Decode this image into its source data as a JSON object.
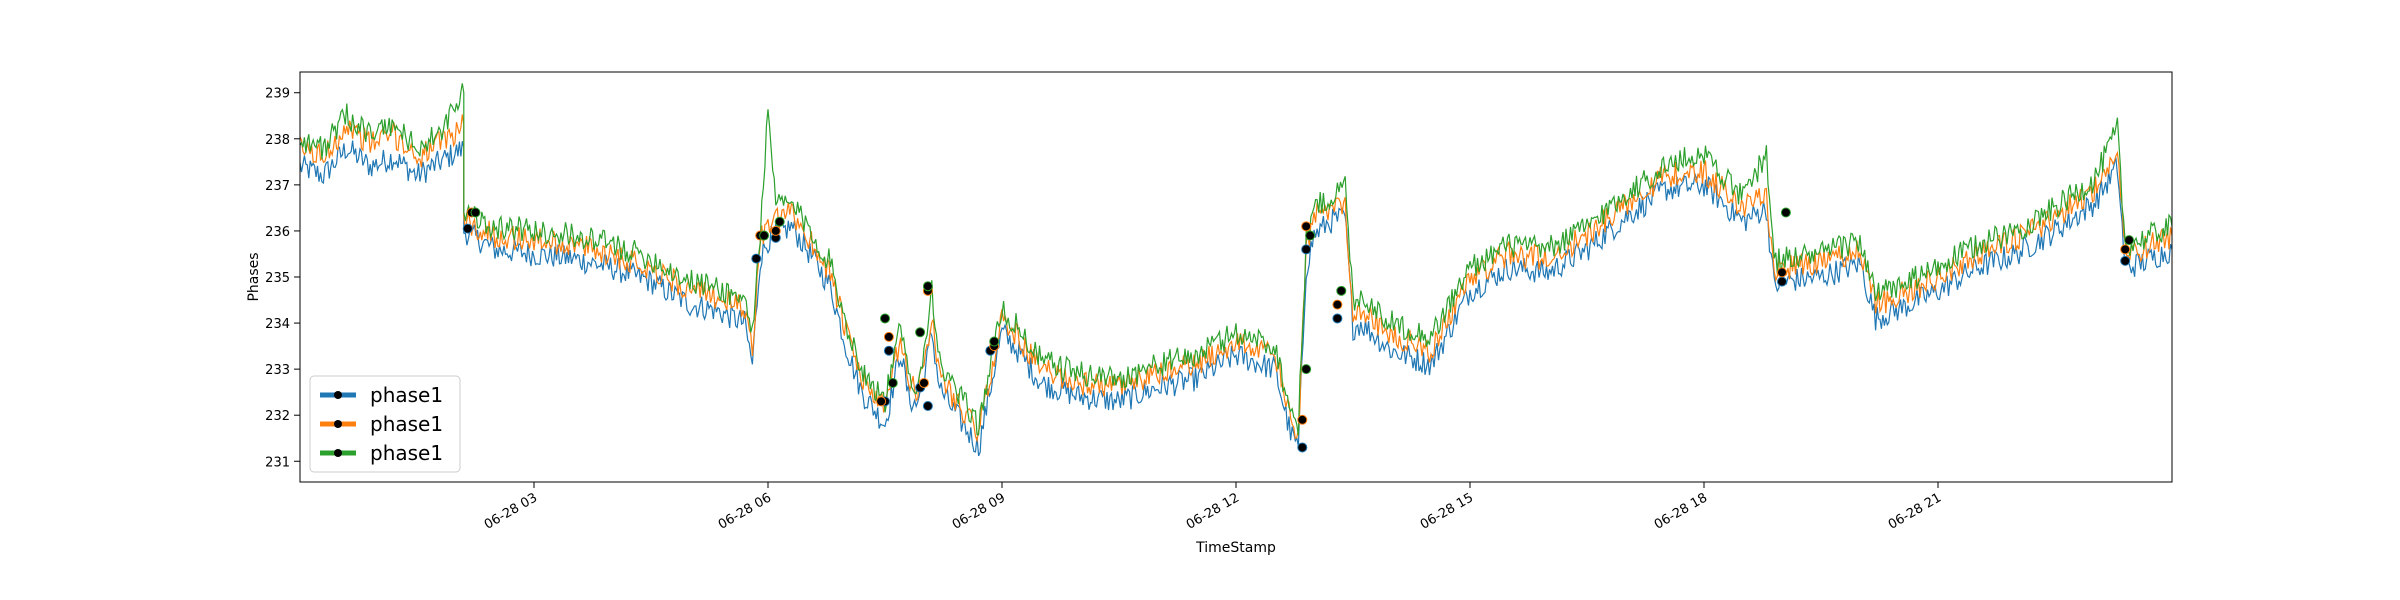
{
  "chart_data": {
    "type": "line",
    "title": "",
    "xlabel": "TimeStamp",
    "ylabel": "Phases",
    "ylim": [
      230.55,
      239.45
    ],
    "xlim": [
      0.0,
      24.0
    ],
    "x_unit": "hours since 06-28 00:00",
    "grid": false,
    "legend_position": "lower-left",
    "x_ticks": [
      {
        "value": 3,
        "label": "06-28 03"
      },
      {
        "value": 6,
        "label": "06-28 06"
      },
      {
        "value": 9,
        "label": "06-28 09"
      },
      {
        "value": 12,
        "label": "06-28 12"
      },
      {
        "value": 15,
        "label": "06-28 15"
      },
      {
        "value": 18,
        "label": "06-28 18"
      },
      {
        "value": 21,
        "label": "06-28 21"
      }
    ],
    "y_ticks": [
      231,
      232,
      233,
      234,
      235,
      236,
      237,
      238,
      239
    ],
    "series": [
      {
        "name": "phase1",
        "color": "#1f77b4",
        "x": [
          0,
          0.3,
          0.6,
          0.9,
          1.2,
          1.5,
          1.8,
          2.1,
          2.1,
          2.2,
          2.5,
          3,
          3.5,
          4,
          4.5,
          5,
          5.3,
          5.7,
          5.8,
          5.9,
          6,
          6.1,
          6.3,
          6.5,
          6.8,
          7,
          7.2,
          7.5,
          7.6,
          7.7,
          7.8,
          7.9,
          8.0,
          8.1,
          8.2,
          8.3,
          8.5,
          8.7,
          8.9,
          9.0,
          9.2,
          9.5,
          10,
          10.5,
          11,
          11.5,
          12,
          12.5,
          12.7,
          12.8,
          12.9,
          13,
          13.2,
          13.4,
          13.5,
          13.6,
          13.8,
          14,
          14.5,
          15,
          15.5,
          16,
          16.5,
          17,
          17.5,
          18,
          18.5,
          18.8,
          18.9,
          19,
          19.5,
          20,
          20.2,
          20.5,
          21,
          21.5,
          22,
          22.5,
          23,
          23.3,
          23.4,
          23.6,
          24
        ],
        "y": [
          237.4,
          237.2,
          237.8,
          237.4,
          237.6,
          237.2,
          237.5,
          237.8,
          236.0,
          235.9,
          235.6,
          235.5,
          235.4,
          235.2,
          234.9,
          234.4,
          234.3,
          234.0,
          233.1,
          235.4,
          235.8,
          235.9,
          236.1,
          235.6,
          234.8,
          233.5,
          232.5,
          231.8,
          232.6,
          233.4,
          232.4,
          232.2,
          232.8,
          233.8,
          232.6,
          232.3,
          231.8,
          231.3,
          233.0,
          233.8,
          233.4,
          232.7,
          232.4,
          232.3,
          232.6,
          232.8,
          233.3,
          233.0,
          231.6,
          231.3,
          235.2,
          235.9,
          236.2,
          236.3,
          233.9,
          234.0,
          233.7,
          233.4,
          233.1,
          234.7,
          235.2,
          235.1,
          235.6,
          236.3,
          236.9,
          237.0,
          236.2,
          236.5,
          234.8,
          234.9,
          235.0,
          235.3,
          234.1,
          234.3,
          234.7,
          235.2,
          235.5,
          236.0,
          236.6,
          237.4,
          235.2,
          235.3,
          235.6
        ],
        "markers": [
          [
            2.15,
            236.05
          ],
          [
            5.85,
            235.4
          ],
          [
            6.1,
            235.85
          ],
          [
            7.5,
            232.3
          ],
          [
            7.55,
            233.4
          ],
          [
            7.95,
            232.6
          ],
          [
            8.05,
            232.2
          ],
          [
            8.85,
            233.4
          ],
          [
            12.85,
            231.3
          ],
          [
            12.9,
            235.6
          ],
          [
            13.3,
            234.1
          ],
          [
            19.0,
            234.9
          ],
          [
            23.4,
            235.35
          ]
        ]
      },
      {
        "name": "phase1",
        "color": "#ff7f0e",
        "x": [
          0,
          0.3,
          0.6,
          0.9,
          1.2,
          1.5,
          1.8,
          2.1,
          2.1,
          2.2,
          2.5,
          3,
          3.5,
          4,
          4.5,
          5,
          5.3,
          5.7,
          5.8,
          5.9,
          6,
          6.1,
          6.3,
          6.5,
          6.8,
          7,
          7.2,
          7.5,
          7.6,
          7.7,
          7.8,
          7.9,
          8.0,
          8.1,
          8.2,
          8.3,
          8.5,
          8.7,
          8.9,
          9.0,
          9.2,
          9.5,
          10,
          10.5,
          11,
          11.5,
          12,
          12.5,
          12.7,
          12.8,
          12.9,
          13,
          13.2,
          13.4,
          13.5,
          13.6,
          13.8,
          14,
          14.5,
          15,
          15.5,
          16,
          16.5,
          17,
          17.5,
          18,
          18.5,
          18.8,
          18.9,
          19,
          19.5,
          20,
          20.2,
          20.5,
          21,
          21.5,
          22,
          22.5,
          23,
          23.3,
          23.4,
          23.6,
          24
        ],
        "y": [
          237.8,
          237.6,
          238.3,
          237.9,
          238.1,
          237.6,
          237.9,
          238.3,
          236.3,
          236.1,
          235.9,
          235.8,
          235.7,
          235.5,
          235.2,
          234.7,
          234.6,
          234.3,
          233.5,
          235.8,
          236.1,
          236.2,
          236.4,
          235.9,
          235.1,
          233.8,
          232.8,
          232.1,
          232.9,
          233.7,
          232.7,
          232.5,
          233.1,
          234.1,
          232.9,
          232.6,
          232.1,
          231.6,
          233.3,
          234.1,
          233.7,
          233.0,
          232.7,
          232.6,
          232.9,
          233.1,
          233.6,
          233.3,
          231.9,
          231.6,
          235.6,
          236.3,
          236.5,
          236.6,
          234.2,
          234.3,
          234.0,
          233.7,
          233.4,
          235.0,
          235.5,
          235.4,
          235.9,
          236.6,
          237.2,
          237.3,
          236.5,
          236.8,
          235.1,
          235.2,
          235.3,
          235.6,
          234.4,
          234.6,
          235.0,
          235.5,
          235.8,
          236.3,
          236.9,
          237.7,
          235.5,
          235.6,
          235.9
        ],
        "markers": [
          [
            2.2,
            236.4
          ],
          [
            5.9,
            235.9
          ],
          [
            6.1,
            236.0
          ],
          [
            7.45,
            232.3
          ],
          [
            7.55,
            233.7
          ],
          [
            8.0,
            232.7
          ],
          [
            8.05,
            234.7
          ],
          [
            8.9,
            233.5
          ],
          [
            12.85,
            231.9
          ],
          [
            12.9,
            236.1
          ],
          [
            13.3,
            234.4
          ],
          [
            19.0,
            235.1
          ],
          [
            23.4,
            235.6
          ]
        ]
      },
      {
        "name": "phase1",
        "color": "#2ca02c",
        "x": [
          0,
          0.3,
          0.6,
          0.9,
          1.2,
          1.5,
          1.8,
          2.1,
          2.1,
          2.2,
          2.5,
          3,
          3.5,
          4,
          4.5,
          5,
          5.3,
          5.7,
          5.8,
          5.9,
          6,
          6.1,
          6.3,
          6.5,
          6.8,
          7,
          7.2,
          7.5,
          7.6,
          7.7,
          7.8,
          7.9,
          8.0,
          8.1,
          8.2,
          8.3,
          8.5,
          8.7,
          8.9,
          9.0,
          9.2,
          9.5,
          10,
          10.5,
          11,
          11.5,
          12,
          12.5,
          12.7,
          12.8,
          12.9,
          13,
          13.2,
          13.4,
          13.5,
          13.6,
          13.8,
          14,
          14.5,
          15,
          15.5,
          16,
          16.5,
          17,
          17.5,
          18,
          18.5,
          18.8,
          18.9,
          19,
          19.5,
          20,
          20.2,
          20.5,
          21,
          21.5,
          22,
          22.5,
          23,
          23.3,
          23.4,
          23.6,
          24
        ],
        "y": [
          238.0,
          237.8,
          238.5,
          238.1,
          238.3,
          237.8,
          238.1,
          239.0,
          236.5,
          236.3,
          236.1,
          236.0,
          235.9,
          235.7,
          235.4,
          234.9,
          234.8,
          234.5,
          233.8,
          236.0,
          238.5,
          236.6,
          236.6,
          236.1,
          235.3,
          234.0,
          233.0,
          232.3,
          233.1,
          233.9,
          232.9,
          232.7,
          233.3,
          234.8,
          233.1,
          232.8,
          232.3,
          231.8,
          233.5,
          234.3,
          233.9,
          233.2,
          232.9,
          232.8,
          233.1,
          233.3,
          233.8,
          233.5,
          232.1,
          231.8,
          235.8,
          236.5,
          236.7,
          237.0,
          234.5,
          234.6,
          234.3,
          234.0,
          233.7,
          235.2,
          235.7,
          235.6,
          236.1,
          236.8,
          237.4,
          237.7,
          236.7,
          237.7,
          235.3,
          235.4,
          235.5,
          235.8,
          234.6,
          234.8,
          235.2,
          235.7,
          236.0,
          236.5,
          237.1,
          238.2,
          235.7,
          235.8,
          236.1
        ],
        "markers": [
          [
            2.25,
            236.4
          ],
          [
            5.95,
            235.9
          ],
          [
            6.15,
            236.2
          ],
          [
            7.5,
            234.1
          ],
          [
            7.6,
            232.7
          ],
          [
            7.95,
            233.8
          ],
          [
            8.05,
            234.8
          ],
          [
            8.9,
            233.6
          ],
          [
            12.9,
            233.0
          ],
          [
            12.95,
            235.9
          ],
          [
            13.35,
            234.7
          ],
          [
            19.05,
            236.4
          ],
          [
            23.45,
            235.8
          ]
        ]
      }
    ]
  }
}
